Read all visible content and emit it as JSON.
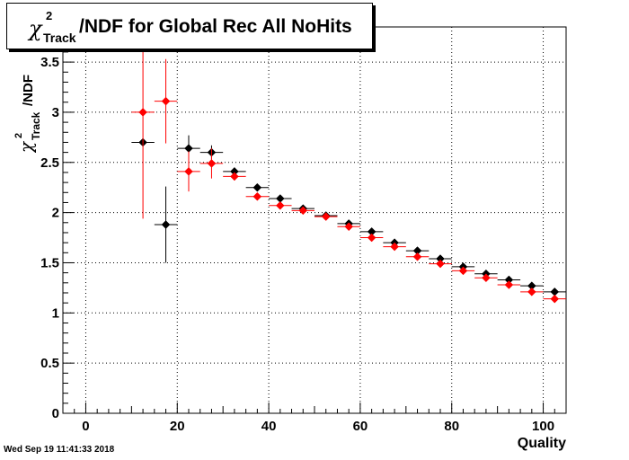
{
  "title": {
    "symbol": "χ",
    "superscript": "2",
    "subscript": "Track",
    "main": "/NDF for Global Rec All NoHits"
  },
  "timestamp": "Wed Sep 19 11:41:33 2018",
  "colors": {
    "series_black": "#000000",
    "series_red": "#ff0000"
  },
  "chart_data": {
    "type": "scatter",
    "title": "χ²_Track/NDF for Global Rec All NoHits",
    "xlabel": "Quality",
    "ylabel": "χ²_Track/NDF",
    "xlim": [
      -5,
      105
    ],
    "ylim": [
      0,
      3.85
    ],
    "xticks": [
      0,
      20,
      40,
      60,
      80,
      100
    ],
    "xtick_labels": [
      "0",
      "20",
      "40",
      "60",
      "80",
      "100"
    ],
    "yticks": [
      0,
      0.5,
      1,
      1.5,
      2,
      2.5,
      3,
      3.5
    ],
    "ytick_labels": [
      "0",
      "0.5",
      "1",
      "1.5",
      "2",
      "2.5",
      "3",
      "3.5"
    ],
    "grid": true,
    "x_error": 2.5,
    "series": [
      {
        "color": "#000000",
        "x": [
          12.5,
          17.5,
          22.5,
          27.5,
          32.5,
          37.5,
          42.5,
          47.5,
          52.5,
          57.5,
          62.5,
          67.5,
          72.5,
          77.5,
          82.5,
          87.5,
          92.5,
          97.5,
          102.5
        ],
        "y": [
          2.7,
          1.88,
          2.64,
          2.6,
          2.41,
          2.25,
          2.14,
          2.04,
          1.97,
          1.89,
          1.81,
          1.7,
          1.62,
          1.54,
          1.46,
          1.39,
          1.33,
          1.27,
          1.21
        ],
        "yerr": [
          0,
          0.38,
          0.13,
          0.07,
          0.03,
          0.02,
          0.02,
          0.01,
          0.01,
          0.01,
          0.01,
          0.01,
          0.01,
          0.01,
          0.01,
          0.01,
          0.01,
          0.01,
          0.01
        ]
      },
      {
        "color": "#ff0000",
        "x": [
          12.5,
          17.5,
          22.5,
          27.5,
          32.5,
          37.5,
          42.5,
          47.5,
          52.5,
          57.5,
          62.5,
          67.5,
          72.5,
          77.5,
          82.5,
          87.5,
          92.5,
          97.5,
          102.5
        ],
        "y": [
          3.0,
          3.11,
          2.41,
          2.49,
          2.36,
          2.16,
          2.07,
          2.02,
          1.96,
          1.86,
          1.75,
          1.66,
          1.56,
          1.49,
          1.42,
          1.35,
          1.28,
          1.21,
          1.14
        ],
        "yerr": [
          1.06,
          0.42,
          0.2,
          0.15,
          0.04,
          0.03,
          0.02,
          0.01,
          0.01,
          0.01,
          0.01,
          0.01,
          0.01,
          0.01,
          0.01,
          0.01,
          0.01,
          0.01,
          0.01
        ]
      }
    ]
  }
}
